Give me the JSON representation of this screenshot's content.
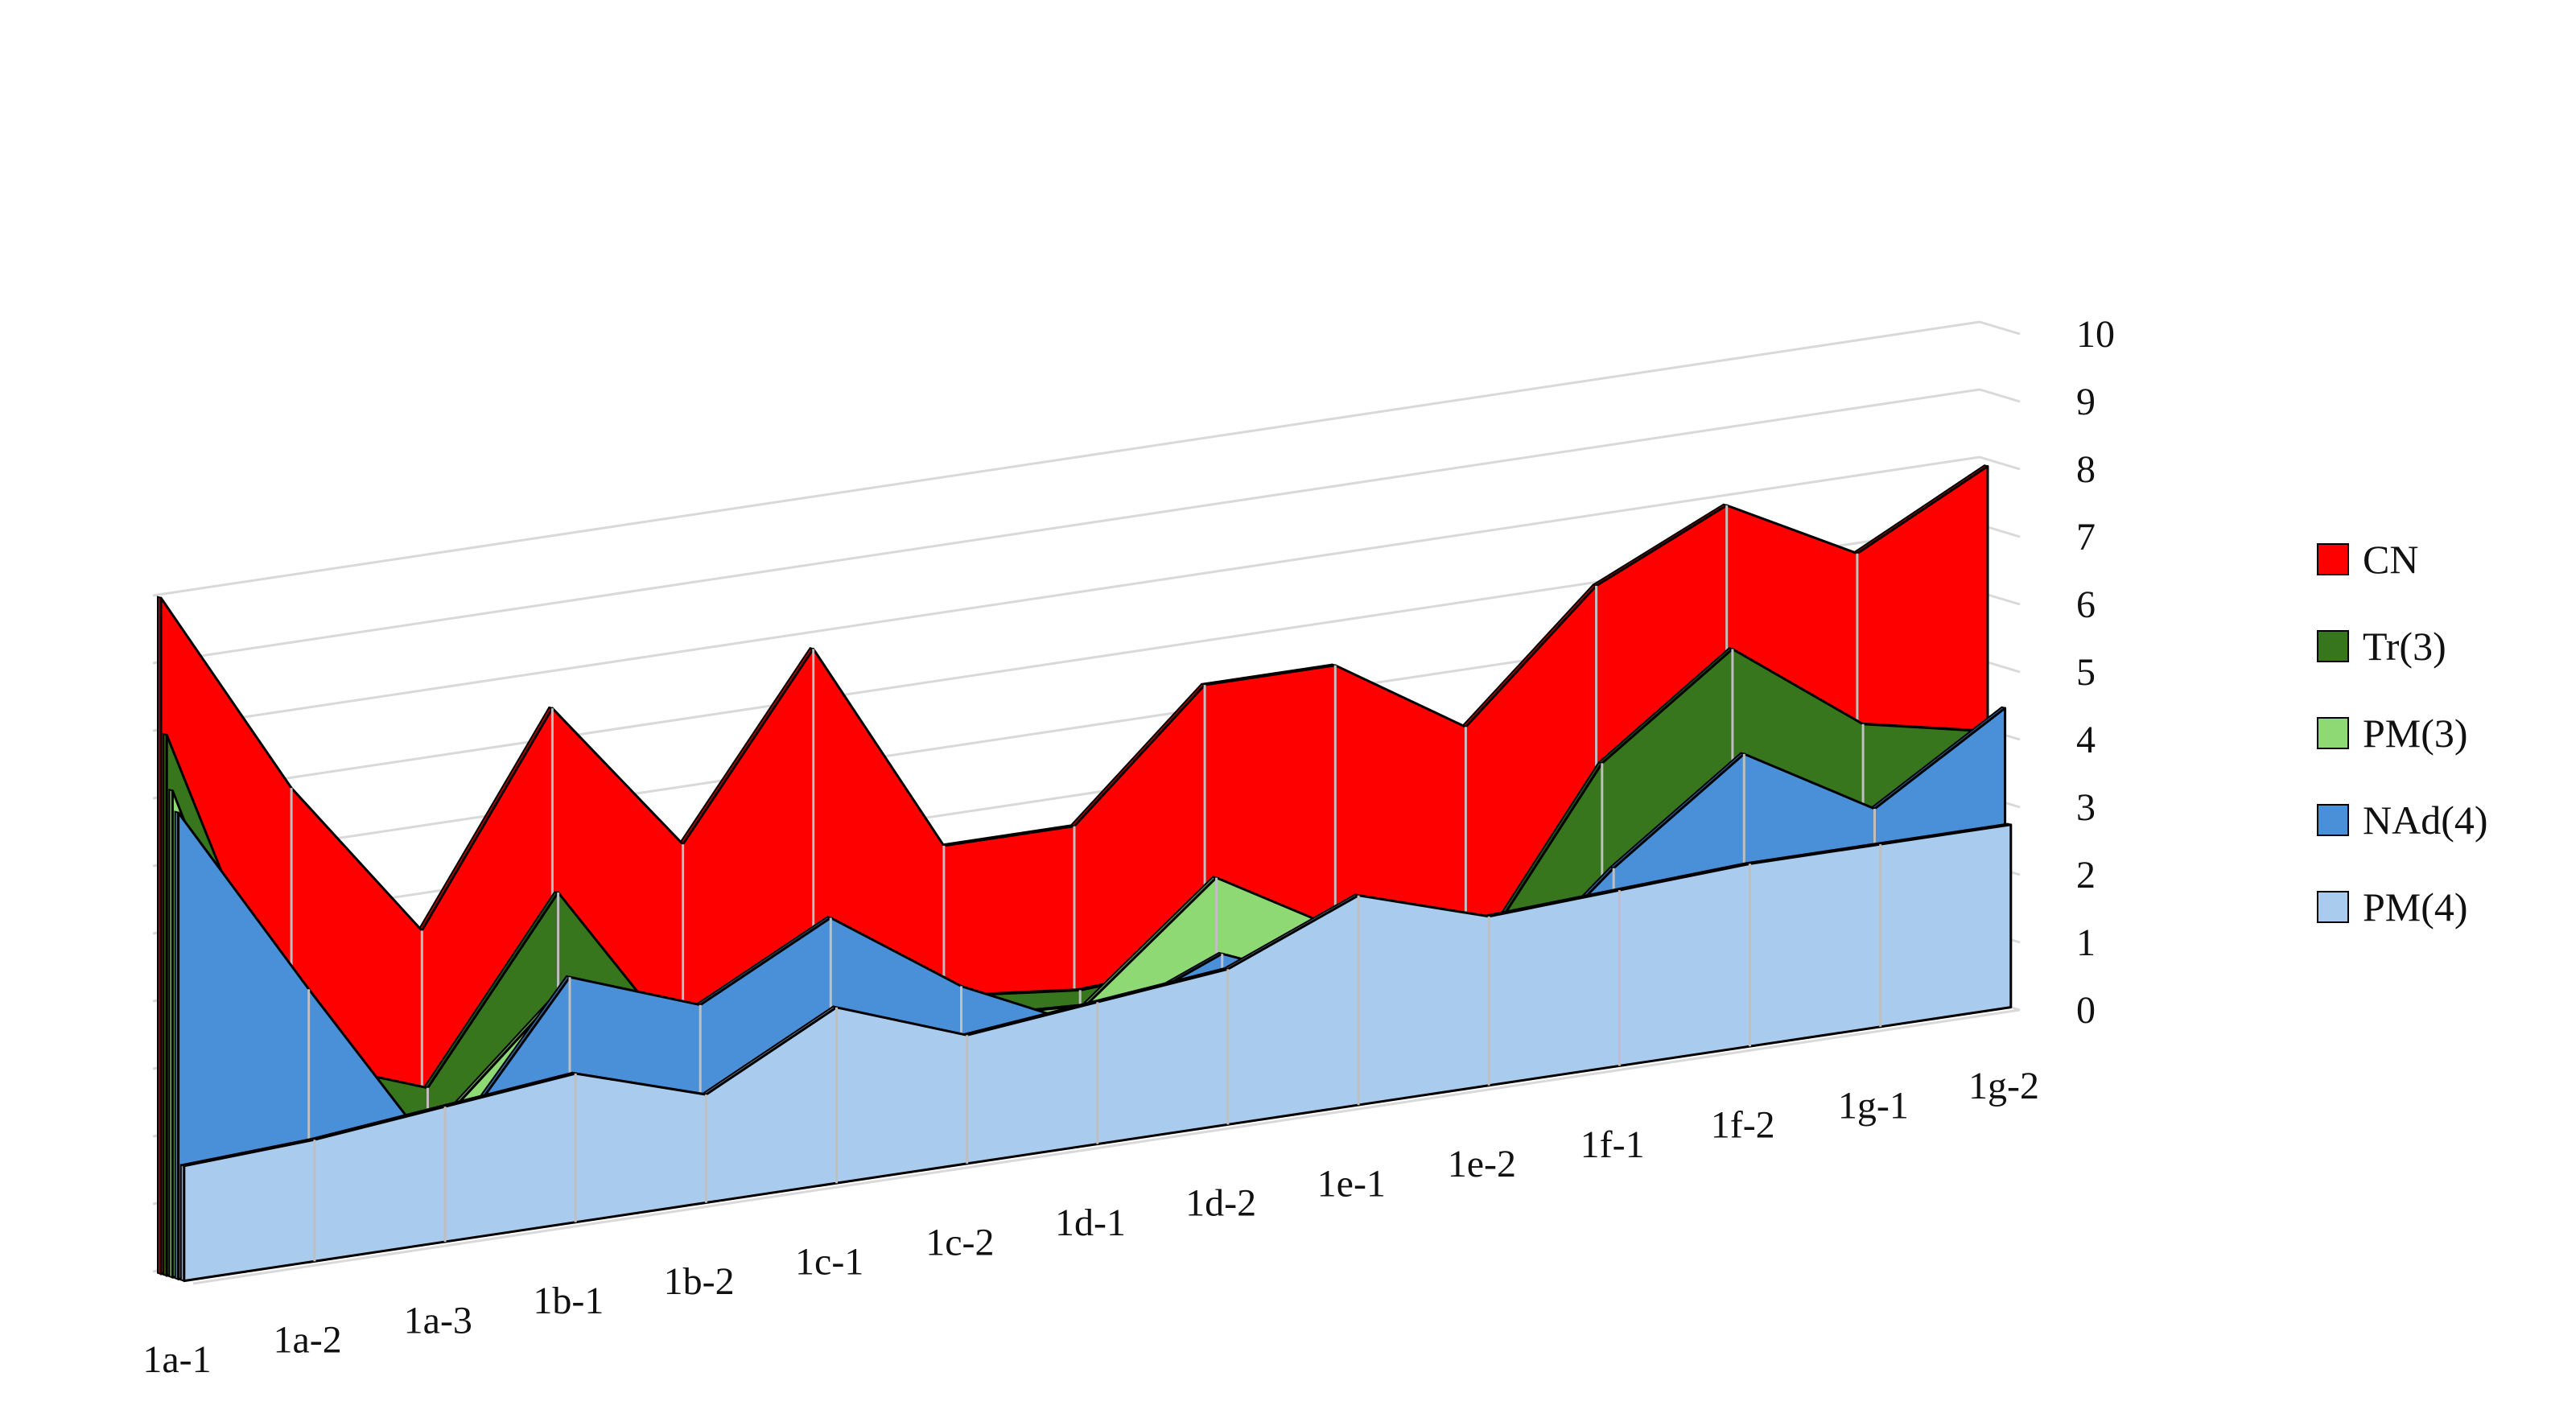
{
  "chart_data": {
    "type": "area",
    "subtype": "3d-area",
    "title": "",
    "xlabel": "",
    "ylabel": "",
    "ylim": [
      0,
      10
    ],
    "yticks": [
      0,
      1,
      2,
      3,
      4,
      5,
      6,
      7,
      8,
      9,
      10
    ],
    "grid": true,
    "legend_position": "right",
    "categories": [
      "1a-1",
      "1a-2",
      "1a-3",
      "1b-1",
      "1b-2",
      "1c-1",
      "1c-2",
      "1d-1",
      "1d-2",
      "1e-1",
      "1e-2",
      "1f-1",
      "1f-2",
      "1g-1",
      "1g-2"
    ],
    "series": [
      {
        "name": "CN",
        "color": "#ff0000",
        "values": [
          10,
          6.9,
          4.5,
          7.5,
          5.2,
          7.8,
          4.6,
          4.6,
          6.4,
          6.4,
          5.2,
          7.0,
          7.9,
          6.9,
          7.9
        ]
      },
      {
        "name": "Tr(3)",
        "color": "#38761d",
        "values": [
          8,
          2.9,
          2.2,
          4.8,
          2.1,
          3.2,
          2.4,
          2.2,
          2.3,
          1.8,
          1.7,
          4.4,
          5.8,
          4.4,
          4.0
        ]
      },
      {
        "name": "PM(3)",
        "color": "#8ed973",
        "values": [
          7.2,
          2.0,
          1.6,
          3.4,
          1.9,
          3.2,
          2.1,
          2.0,
          3.6,
          2.5,
          1.7,
          2.4,
          3.6,
          2.5,
          3.0
        ]
      },
      {
        "name": "NAd(4)",
        "color": "#4a90d9",
        "values": [
          6.9,
          4.0,
          1.2,
          3.6,
          2.9,
          3.9,
          2.6,
          1.7,
          2.5,
          1.7,
          1.2,
          2.9,
          4.3,
          3.2,
          4.4
        ]
      },
      {
        "name": "PM(4)",
        "color": "#a9cbee",
        "values": [
          1.7,
          1.8,
          2.0,
          2.2,
          1.6,
          2.6,
          1.9,
          2.1,
          2.3,
          3.1,
          2.5,
          2.6,
          2.7,
          2.7,
          2.7
        ]
      }
    ]
  }
}
